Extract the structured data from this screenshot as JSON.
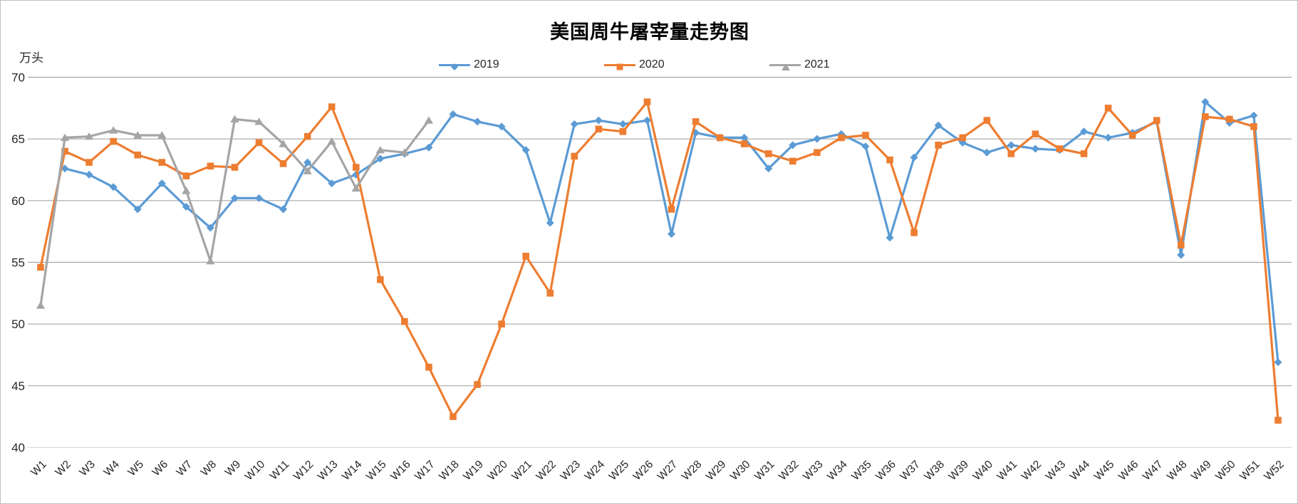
{
  "title": "美国周牛屠宰量走势图",
  "chart_data": {
    "type": "line",
    "title": "美国周牛屠宰量走势图",
    "unit_label": "万头",
    "ylim": [
      40,
      70
    ],
    "ytick_step": 5,
    "grid": true,
    "legend_position": "top",
    "gridline_color": "#a6a6a6",
    "baseline_color": "#d9d9d9",
    "categories": [
      "W1",
      "W2",
      "W3",
      "W4",
      "W5",
      "W6",
      "W7",
      "W8",
      "W9",
      "W10",
      "W11",
      "W12",
      "W13",
      "W14",
      "W15",
      "W16",
      "W17",
      "W18",
      "W19",
      "W20",
      "W21",
      "W22",
      "W23",
      "W24",
      "W25",
      "W26",
      "W27",
      "W28",
      "W29",
      "W30",
      "W31",
      "W32",
      "W33",
      "W34",
      "W35",
      "W36",
      "W37",
      "W38",
      "W39",
      "W40",
      "W41",
      "W42",
      "W43",
      "W44",
      "W45",
      "W46",
      "W47",
      "W48",
      "W49",
      "W50",
      "W51",
      "W52"
    ],
    "series": [
      {
        "name": "2019",
        "color": "#5B9BD5",
        "marker": "diamond",
        "values": [
          null,
          62.6,
          62.1,
          61.1,
          59.3,
          61.4,
          59.5,
          57.8,
          60.2,
          60.2,
          59.3,
          63.1,
          61.4,
          62.1,
          63.4,
          63.8,
          64.3,
          67.0,
          66.4,
          66.0,
          64.1,
          58.2,
          66.2,
          66.5,
          66.2,
          66.5,
          57.3,
          65.5,
          65.1,
          65.1,
          62.6,
          64.5,
          65.0,
          65.4,
          64.4,
          57.0,
          63.5,
          66.1,
          64.7,
          63.9,
          64.5,
          64.2,
          64.1,
          65.6,
          65.1,
          65.5,
          66.4,
          55.6,
          68.0,
          66.3,
          66.9,
          46.9
        ]
      },
      {
        "name": "2020",
        "color": "#ED7D31",
        "marker": "square",
        "values": [
          54.6,
          64.0,
          63.1,
          64.8,
          63.7,
          63.1,
          62.0,
          62.8,
          62.7,
          64.7,
          63.0,
          65.2,
          67.6,
          62.7,
          53.6,
          50.2,
          46.5,
          42.5,
          45.1,
          50.0,
          55.5,
          52.5,
          63.6,
          65.8,
          65.6,
          68.0,
          59.3,
          66.4,
          65.1,
          64.6,
          63.8,
          63.2,
          63.9,
          65.1,
          65.3,
          63.3,
          57.4,
          64.5,
          65.1,
          66.5,
          63.8,
          65.4,
          64.2,
          63.8,
          67.5,
          65.3,
          66.5,
          56.4,
          66.8,
          66.6,
          66.0,
          42.2
        ]
      },
      {
        "name": "2021",
        "color": "#A5A5A5",
        "marker": "triangle",
        "values": [
          51.5,
          65.1,
          65.2,
          65.7,
          65.3,
          65.3,
          60.8,
          55.1,
          66.6,
          66.4,
          64.6,
          62.4,
          64.8,
          61.0,
          64.1,
          63.9,
          66.5,
          null,
          null,
          null,
          null,
          null,
          null,
          null,
          null,
          null,
          null,
          null,
          null,
          null,
          null,
          null,
          null,
          null,
          null,
          null,
          null,
          null,
          null,
          null,
          null,
          null,
          null,
          null,
          null,
          null,
          null,
          null,
          null,
          null,
          null,
          null
        ]
      }
    ]
  }
}
